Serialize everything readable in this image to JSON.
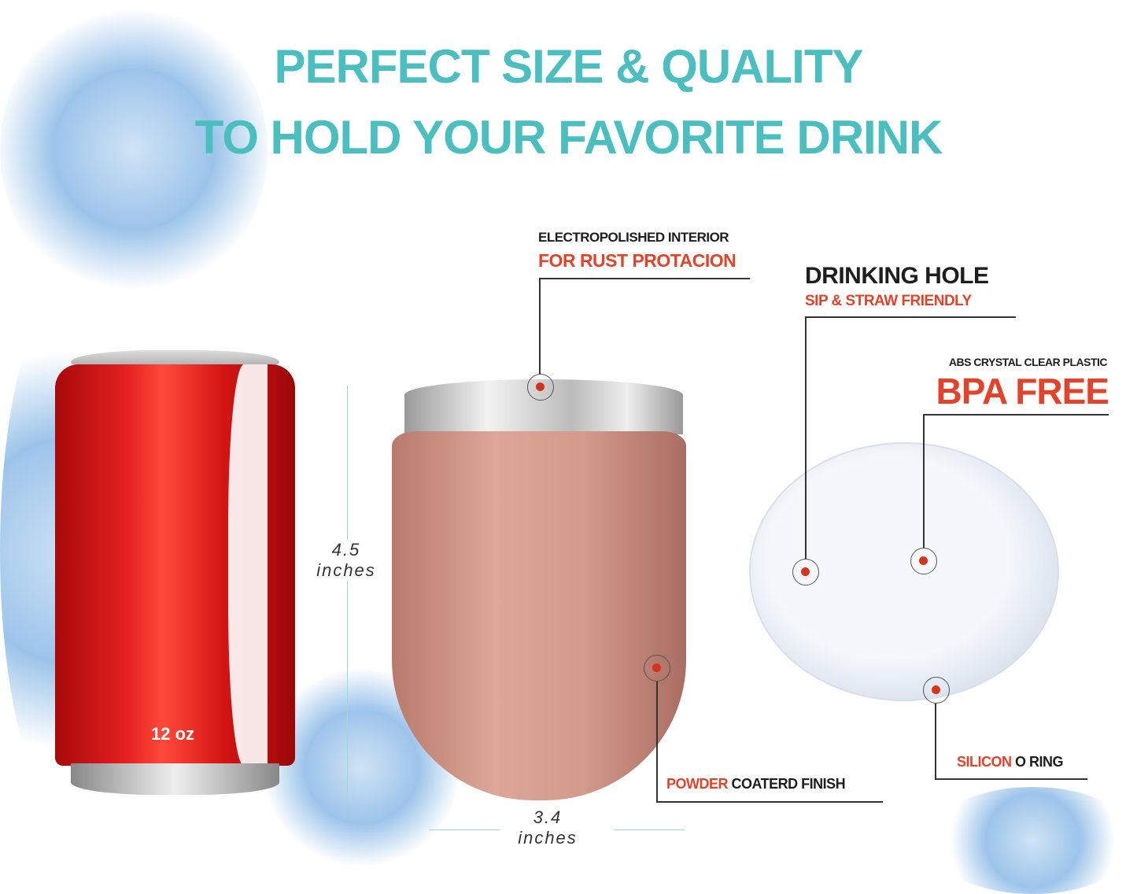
{
  "title": {
    "line1": "PERFECT SIZE & QUALITY",
    "line2": "TO HOLD YOUR FAVORITE DRINK"
  },
  "colors": {
    "title": "#4bbfbf",
    "accent": "#e2432a",
    "can": "#d41414",
    "tumbler": "#d49a8b"
  },
  "can": {
    "label": "12 oz"
  },
  "dimensions": {
    "height_value": "4.5",
    "height_unit": "inches",
    "width_value": "3.4",
    "width_unit": "inches"
  },
  "callouts": {
    "interior": {
      "line1": "ELECTROPOLISHED INTERIOR",
      "line2": "FOR RUST PROTACION"
    },
    "hole": {
      "line1": "DRINKING HOLE",
      "line2": "SIP & STRAW FRIENDLY"
    },
    "bpa": {
      "line1": "ABS CRYSTAL CLEAR PLASTIC",
      "line2": "BPA FREE"
    },
    "finish": {
      "accent": "POWDER",
      "rest": " COATERD FINISH"
    },
    "ring": {
      "accent": "SILICON",
      "rest": " O RING"
    }
  }
}
